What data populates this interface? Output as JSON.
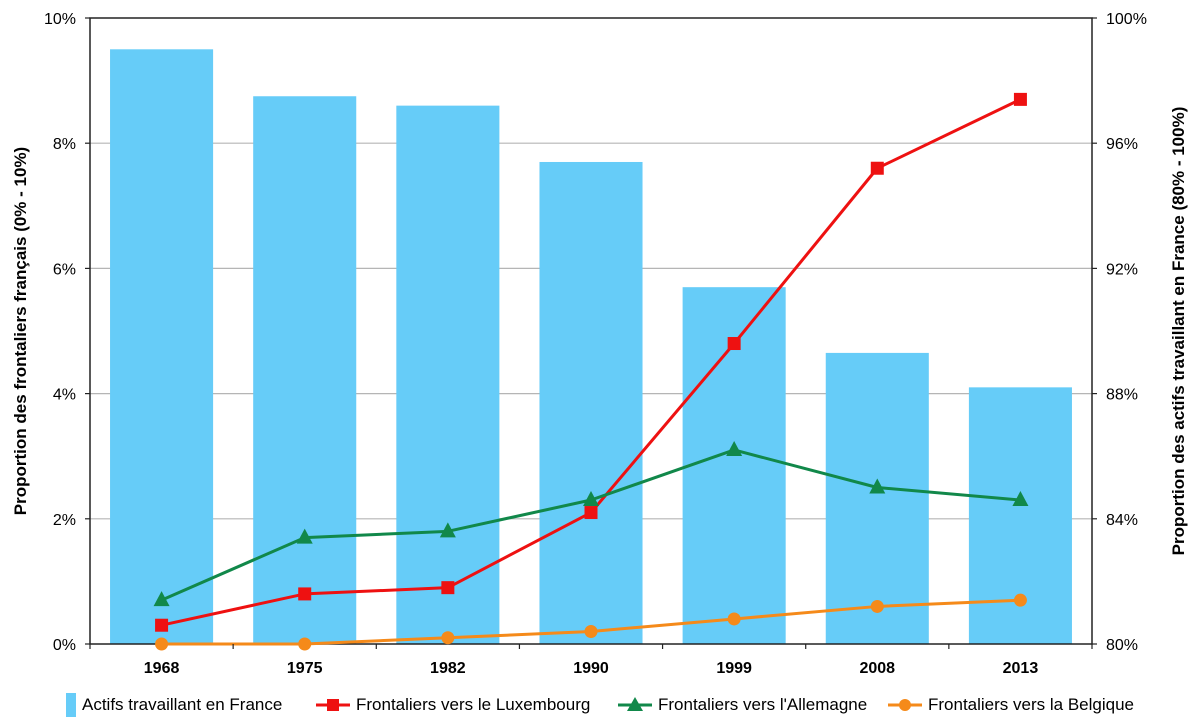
{
  "chart_data": {
    "type": "bar+line",
    "categories": [
      "1968",
      "1975",
      "1982",
      "1990",
      "1999",
      "2008",
      "2013"
    ],
    "y_left": {
      "label": "Proportion des frontaliers français (0% - 10%)",
      "range": [
        0,
        10
      ],
      "ticks": [
        "0%",
        "2%",
        "4%",
        "6%",
        "8%",
        "10%"
      ]
    },
    "y_right": {
      "label": "Proportion des actifs travaillant en France (80% - 100%)",
      "range": [
        80,
        100
      ],
      "ticks": [
        "80%",
        "84%",
        "88%",
        "92%",
        "96%",
        "100%"
      ]
    },
    "bars": {
      "name": "Actifs travaillant en France",
      "axis": "right",
      "color": "#66ccf8",
      "values": [
        99.0,
        97.5,
        97.2,
        95.4,
        91.4,
        89.3,
        88.2
      ]
    },
    "series": [
      {
        "name": "Frontaliers vers le Luxembourg",
        "axis": "left",
        "color": "#ee1111",
        "marker": "square",
        "values": [
          0.3,
          0.8,
          0.9,
          2.1,
          4.8,
          7.6,
          8.7
        ]
      },
      {
        "name": "Frontaliers vers l'Allemagne",
        "axis": "left",
        "color": "#11884a",
        "marker": "triangle",
        "values": [
          0.7,
          1.7,
          1.8,
          2.3,
          3.1,
          2.5,
          2.3
        ]
      },
      {
        "name": "Frontaliers vers la Belgique",
        "axis": "left",
        "color": "#f58a1a",
        "marker": "circle",
        "values": [
          0.0,
          0.0,
          0.1,
          0.2,
          0.4,
          0.6,
          0.7
        ]
      }
    ],
    "grid": true,
    "legend_position": "bottom"
  }
}
